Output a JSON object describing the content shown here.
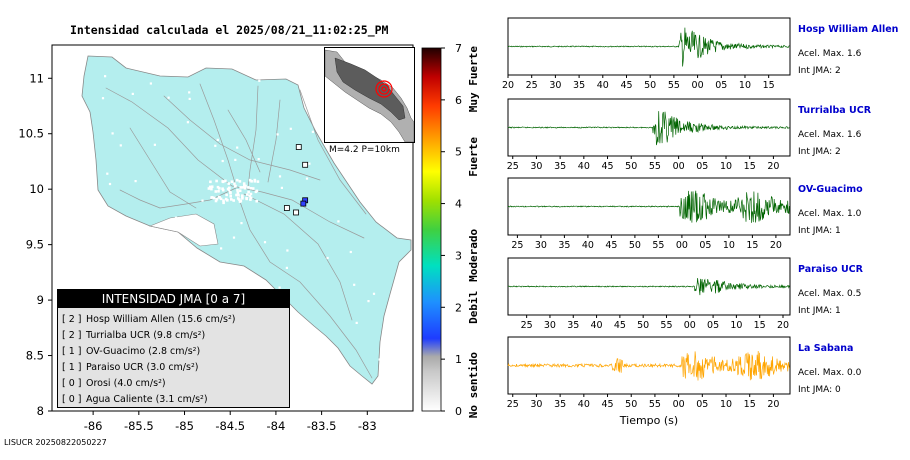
{
  "title": "Intensidad calculada el 2025/08/21_11:02:25_PM",
  "footer": "LISUCR 20250822050227",
  "colors": {
    "land": "#b4eeee",
    "sea": "#ffffff",
    "roads": "#9a9a9a",
    "trace_green": "#006400",
    "trace_orange": "#ffa500",
    "station_names": "#0000cc"
  },
  "map": {
    "xlim": [
      -86.45,
      -82.5
    ],
    "ylim": [
      8.0,
      11.3
    ],
    "x_ticks": [
      "-86",
      "-85.5",
      "-85",
      "-84.5",
      "-84",
      "-83.5",
      "-83"
    ],
    "x_tick_values": [
      -86,
      -85.5,
      -85,
      -84.5,
      -84,
      -83.5,
      -83
    ],
    "y_ticks": [
      "8",
      "8.5",
      "9",
      "9.5",
      "10",
      "10.5",
      "11"
    ],
    "y_tick_values": [
      8,
      8.5,
      9,
      9.5,
      10,
      10.5,
      11
    ],
    "stations": [
      {
        "lon": -83.75,
        "lat": 10.38,
        "fill": "#ffffff"
      },
      {
        "lon": -83.68,
        "lat": 10.22,
        "fill": "#ffffff"
      },
      {
        "lon": -83.68,
        "lat": 9.9,
        "fill": "#3040ff"
      },
      {
        "lon": -83.7,
        "lat": 9.87,
        "fill": "#3040ff"
      },
      {
        "lon": -83.88,
        "lat": 9.83,
        "fill": "#ffffff"
      },
      {
        "lon": -83.78,
        "lat": 9.79,
        "fill": "#ffffff"
      }
    ]
  },
  "minimap_caption": "M=4.2 P=10km",
  "colorbar": {
    "min": 0,
    "max": 7,
    "ticks": [
      "0",
      "1",
      "2",
      "3",
      "4",
      "5",
      "6",
      "7"
    ],
    "tick_values": [
      0,
      1,
      2,
      3,
      4,
      5,
      6,
      7
    ],
    "classes": [
      "No sentido",
      "Debil",
      "Moderado",
      "Fuerte",
      "Muy Fuerte"
    ]
  },
  "legend": {
    "header": "INTENSIDAD JMA [0 a 7]",
    "rows": [
      {
        "rank": "[ 2 ]",
        "name": "Hosp William Allen",
        "value": "(15.6 cm/s²)"
      },
      {
        "rank": "[ 2 ]",
        "name": "Turrialba UCR",
        "value": "(9.8 cm/s²)"
      },
      {
        "rank": "[ 1 ]",
        "name": "OV-Guacimo",
        "value": "(2.8 cm/s²)"
      },
      {
        "rank": "[ 1 ]",
        "name": "Paraiso UCR",
        "value": "(3.0 cm/s²)"
      },
      {
        "rank": "[ 0 ]",
        "name": "Orosi",
        "value": "(4.0 cm/s²)"
      },
      {
        "rank": "[ 0 ]",
        "name": "Agua Caliente",
        "value": "(3.1 cm/s²)"
      }
    ]
  },
  "chart_data": [
    {
      "type": "line",
      "name": "Hosp William Allen",
      "accel_label": "Acel. Max. 1.6",
      "jma_label": "Int JMA: 2",
      "color": "#006400",
      "amplitude": 1.6,
      "onset_s": 56,
      "x_ticks": [
        "20",
        "25",
        "30",
        "35",
        "40",
        "45",
        "50",
        "55",
        "00",
        "05",
        "10",
        "15"
      ],
      "x_tick_values": [
        20,
        25,
        30,
        35,
        40,
        45,
        50,
        55,
        60,
        65,
        70,
        75
      ],
      "xlim": [
        20,
        79.5
      ]
    },
    {
      "type": "line",
      "name": "Turrialba UCR",
      "accel_label": "Acel. Max. 1.6",
      "jma_label": "Int JMA: 2",
      "color": "#006400",
      "amplitude": 1.6,
      "onset_s": 54.5,
      "x_ticks": [
        "25",
        "30",
        "35",
        "40",
        "45",
        "50",
        "55",
        "00",
        "05",
        "10",
        "15",
        "20"
      ],
      "x_tick_values": [
        25,
        30,
        35,
        40,
        45,
        50,
        55,
        60,
        65,
        70,
        75,
        80
      ],
      "xlim": [
        24,
        83.5
      ]
    },
    {
      "type": "line",
      "name": "OV-Guacimo",
      "accel_label": "Acel. Max. 1.0",
      "jma_label": "Int JMA: 1",
      "color": "#006400",
      "amplitude": 1.0,
      "onset_s": 59.5,
      "x_ticks": [
        "25",
        "30",
        "35",
        "40",
        "45",
        "50",
        "55",
        "00",
        "05",
        "10",
        "15",
        "20"
      ],
      "x_tick_values": [
        25,
        30,
        35,
        40,
        45,
        50,
        55,
        60,
        65,
        70,
        75,
        80
      ],
      "xlim": [
        23,
        83
      ]
    },
    {
      "type": "line",
      "name": "Paraiso UCR",
      "accel_label": "Acel. Max. 0.5",
      "jma_label": "Int JMA: 1",
      "color": "#006400",
      "amplitude": 0.5,
      "onset_s": 61,
      "x_ticks": [
        "25",
        "30",
        "35",
        "40",
        "45",
        "50",
        "55",
        "00",
        "05",
        "10",
        "15",
        "20"
      ],
      "x_tick_values": [
        25,
        30,
        35,
        40,
        45,
        50,
        55,
        60,
        65,
        70,
        75,
        80
      ],
      "xlim": [
        21,
        81.5
      ]
    },
    {
      "type": "line",
      "name": "La Sabana",
      "accel_label": "Acel. Max. 0.0",
      "jma_label": "Int JMA: 0",
      "color": "#ffa500",
      "amplitude": 0.0,
      "onset_s": 60.5,
      "xlabel": "Tiempo (s)",
      "x_ticks": [
        "25",
        "30",
        "35",
        "40",
        "45",
        "50",
        "55",
        "00",
        "05",
        "10",
        "15",
        "20"
      ],
      "x_tick_values": [
        25,
        30,
        35,
        40,
        45,
        50,
        55,
        60,
        65,
        70,
        75,
        80
      ],
      "xlim": [
        24,
        83.5
      ]
    }
  ]
}
